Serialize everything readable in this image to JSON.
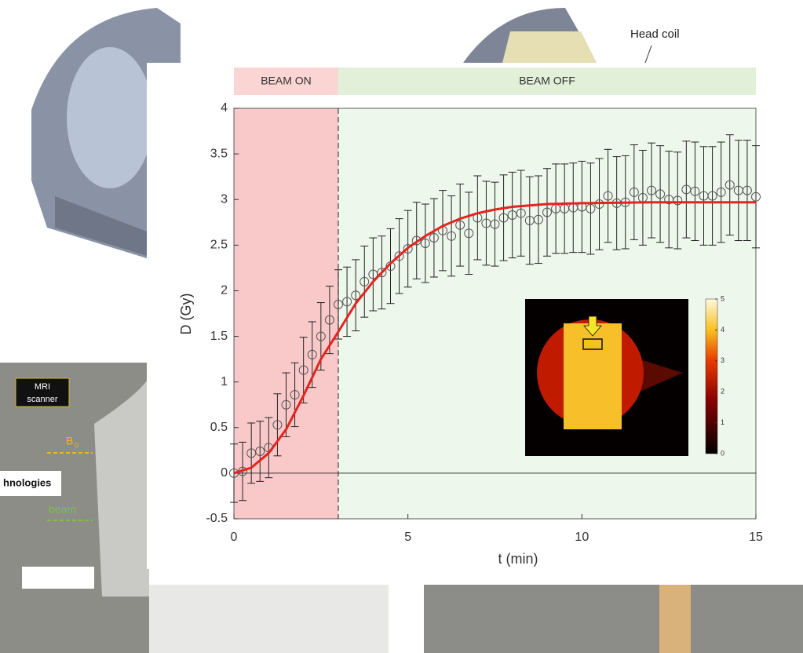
{
  "chart_data": {
    "type": "scatter-errorbar",
    "xlabel": "t (min)",
    "ylabel": "D (Gy)",
    "xlim": [
      0,
      15
    ],
    "xticks": [
      0,
      5,
      10,
      15
    ],
    "ylim": [
      -0.5,
      4
    ],
    "yticks": [
      -0.5,
      0,
      0.5,
      1,
      1.5,
      2,
      2.5,
      3,
      3.5,
      4
    ],
    "regions": [
      {
        "label": "BEAM ON",
        "range": [
          0,
          3
        ],
        "color": "#f9c9c9",
        "band_color": "#fbd5d3"
      },
      {
        "label": "BEAM OFF",
        "range": [
          3,
          15
        ],
        "color": "#eef7ec",
        "band_color": "#e2efd9"
      }
    ],
    "series": [
      {
        "type": "scatter",
        "color": "#555555",
        "x": [
          0,
          0.25,
          0.5,
          0.75,
          1,
          1.25,
          1.5,
          1.75,
          2,
          2.25,
          2.5,
          2.75,
          3,
          3.25,
          3.5,
          3.75,
          4,
          4.25,
          4.5,
          4.75,
          5,
          5.25,
          5.5,
          5.75,
          6,
          6.25,
          6.5,
          6.75,
          7,
          7.25,
          7.5,
          7.75,
          8,
          8.25,
          8.5,
          8.75,
          9,
          9.25,
          9.5,
          9.75,
          10,
          10.25,
          10.5,
          10.75,
          11,
          11.25,
          11.5,
          11.75,
          12,
          12.25,
          12.5,
          12.75,
          13,
          13.25,
          13.5,
          13.75,
          14,
          14.25,
          14.5,
          14.75,
          15
        ],
        "values": [
          0,
          0.02,
          0.22,
          0.24,
          0.28,
          0.53,
          0.75,
          0.86,
          1.13,
          1.3,
          1.5,
          1.68,
          1.85,
          1.88,
          1.95,
          2.1,
          2.18,
          2.2,
          2.27,
          2.38,
          2.46,
          2.55,
          2.52,
          2.58,
          2.66,
          2.6,
          2.72,
          2.63,
          2.8,
          2.74,
          2.73,
          2.8,
          2.83,
          2.85,
          2.77,
          2.78,
          2.86,
          2.9,
          2.9,
          2.91,
          2.92,
          2.9,
          2.95,
          3.04,
          2.96,
          2.97,
          3.08,
          3.02,
          3.1,
          3.06,
          3.0,
          2.99,
          3.11,
          3.09,
          3.04,
          3.04,
          3.08,
          3.16,
          3.1,
          3.1,
          3.03
        ],
        "errors": [
          0.32,
          0.32,
          0.33,
          0.33,
          0.33,
          0.34,
          0.35,
          0.35,
          0.36,
          0.36,
          0.37,
          0.37,
          0.38,
          0.38,
          0.39,
          0.39,
          0.4,
          0.4,
          0.41,
          0.41,
          0.42,
          0.42,
          0.43,
          0.43,
          0.44,
          0.44,
          0.45,
          0.45,
          0.46,
          0.46,
          0.46,
          0.47,
          0.47,
          0.47,
          0.48,
          0.48,
          0.48,
          0.49,
          0.49,
          0.49,
          0.5,
          0.5,
          0.5,
          0.51,
          0.51,
          0.51,
          0.52,
          0.52,
          0.52,
          0.53,
          0.53,
          0.53,
          0.53,
          0.54,
          0.54,
          0.54,
          0.55,
          0.55,
          0.55,
          0.55,
          0.56
        ]
      },
      {
        "type": "line",
        "color": "#e52320",
        "x": [
          0,
          0.5,
          1,
          1.5,
          2,
          2.5,
          3,
          3.5,
          4,
          4.5,
          5,
          5.5,
          6,
          6.5,
          7,
          7.5,
          8,
          9,
          10,
          12,
          15
        ],
        "values": [
          0,
          0.06,
          0.22,
          0.48,
          0.85,
          1.25,
          1.55,
          1.86,
          2.1,
          2.3,
          2.47,
          2.6,
          2.71,
          2.79,
          2.85,
          2.89,
          2.92,
          2.95,
          2.96,
          2.97,
          2.97
        ]
      }
    ],
    "inset": {
      "clim": [
        0,
        5
      ],
      "ticks": [
        0,
        1,
        2,
        3,
        4,
        5
      ]
    }
  },
  "background": {
    "head_coil": "Head coil",
    "mri_scanner": [
      "MRI",
      "scanner"
    ],
    "b0": [
      "B",
      "0"
    ],
    "beam": "beam",
    "company": "hnologies"
  }
}
